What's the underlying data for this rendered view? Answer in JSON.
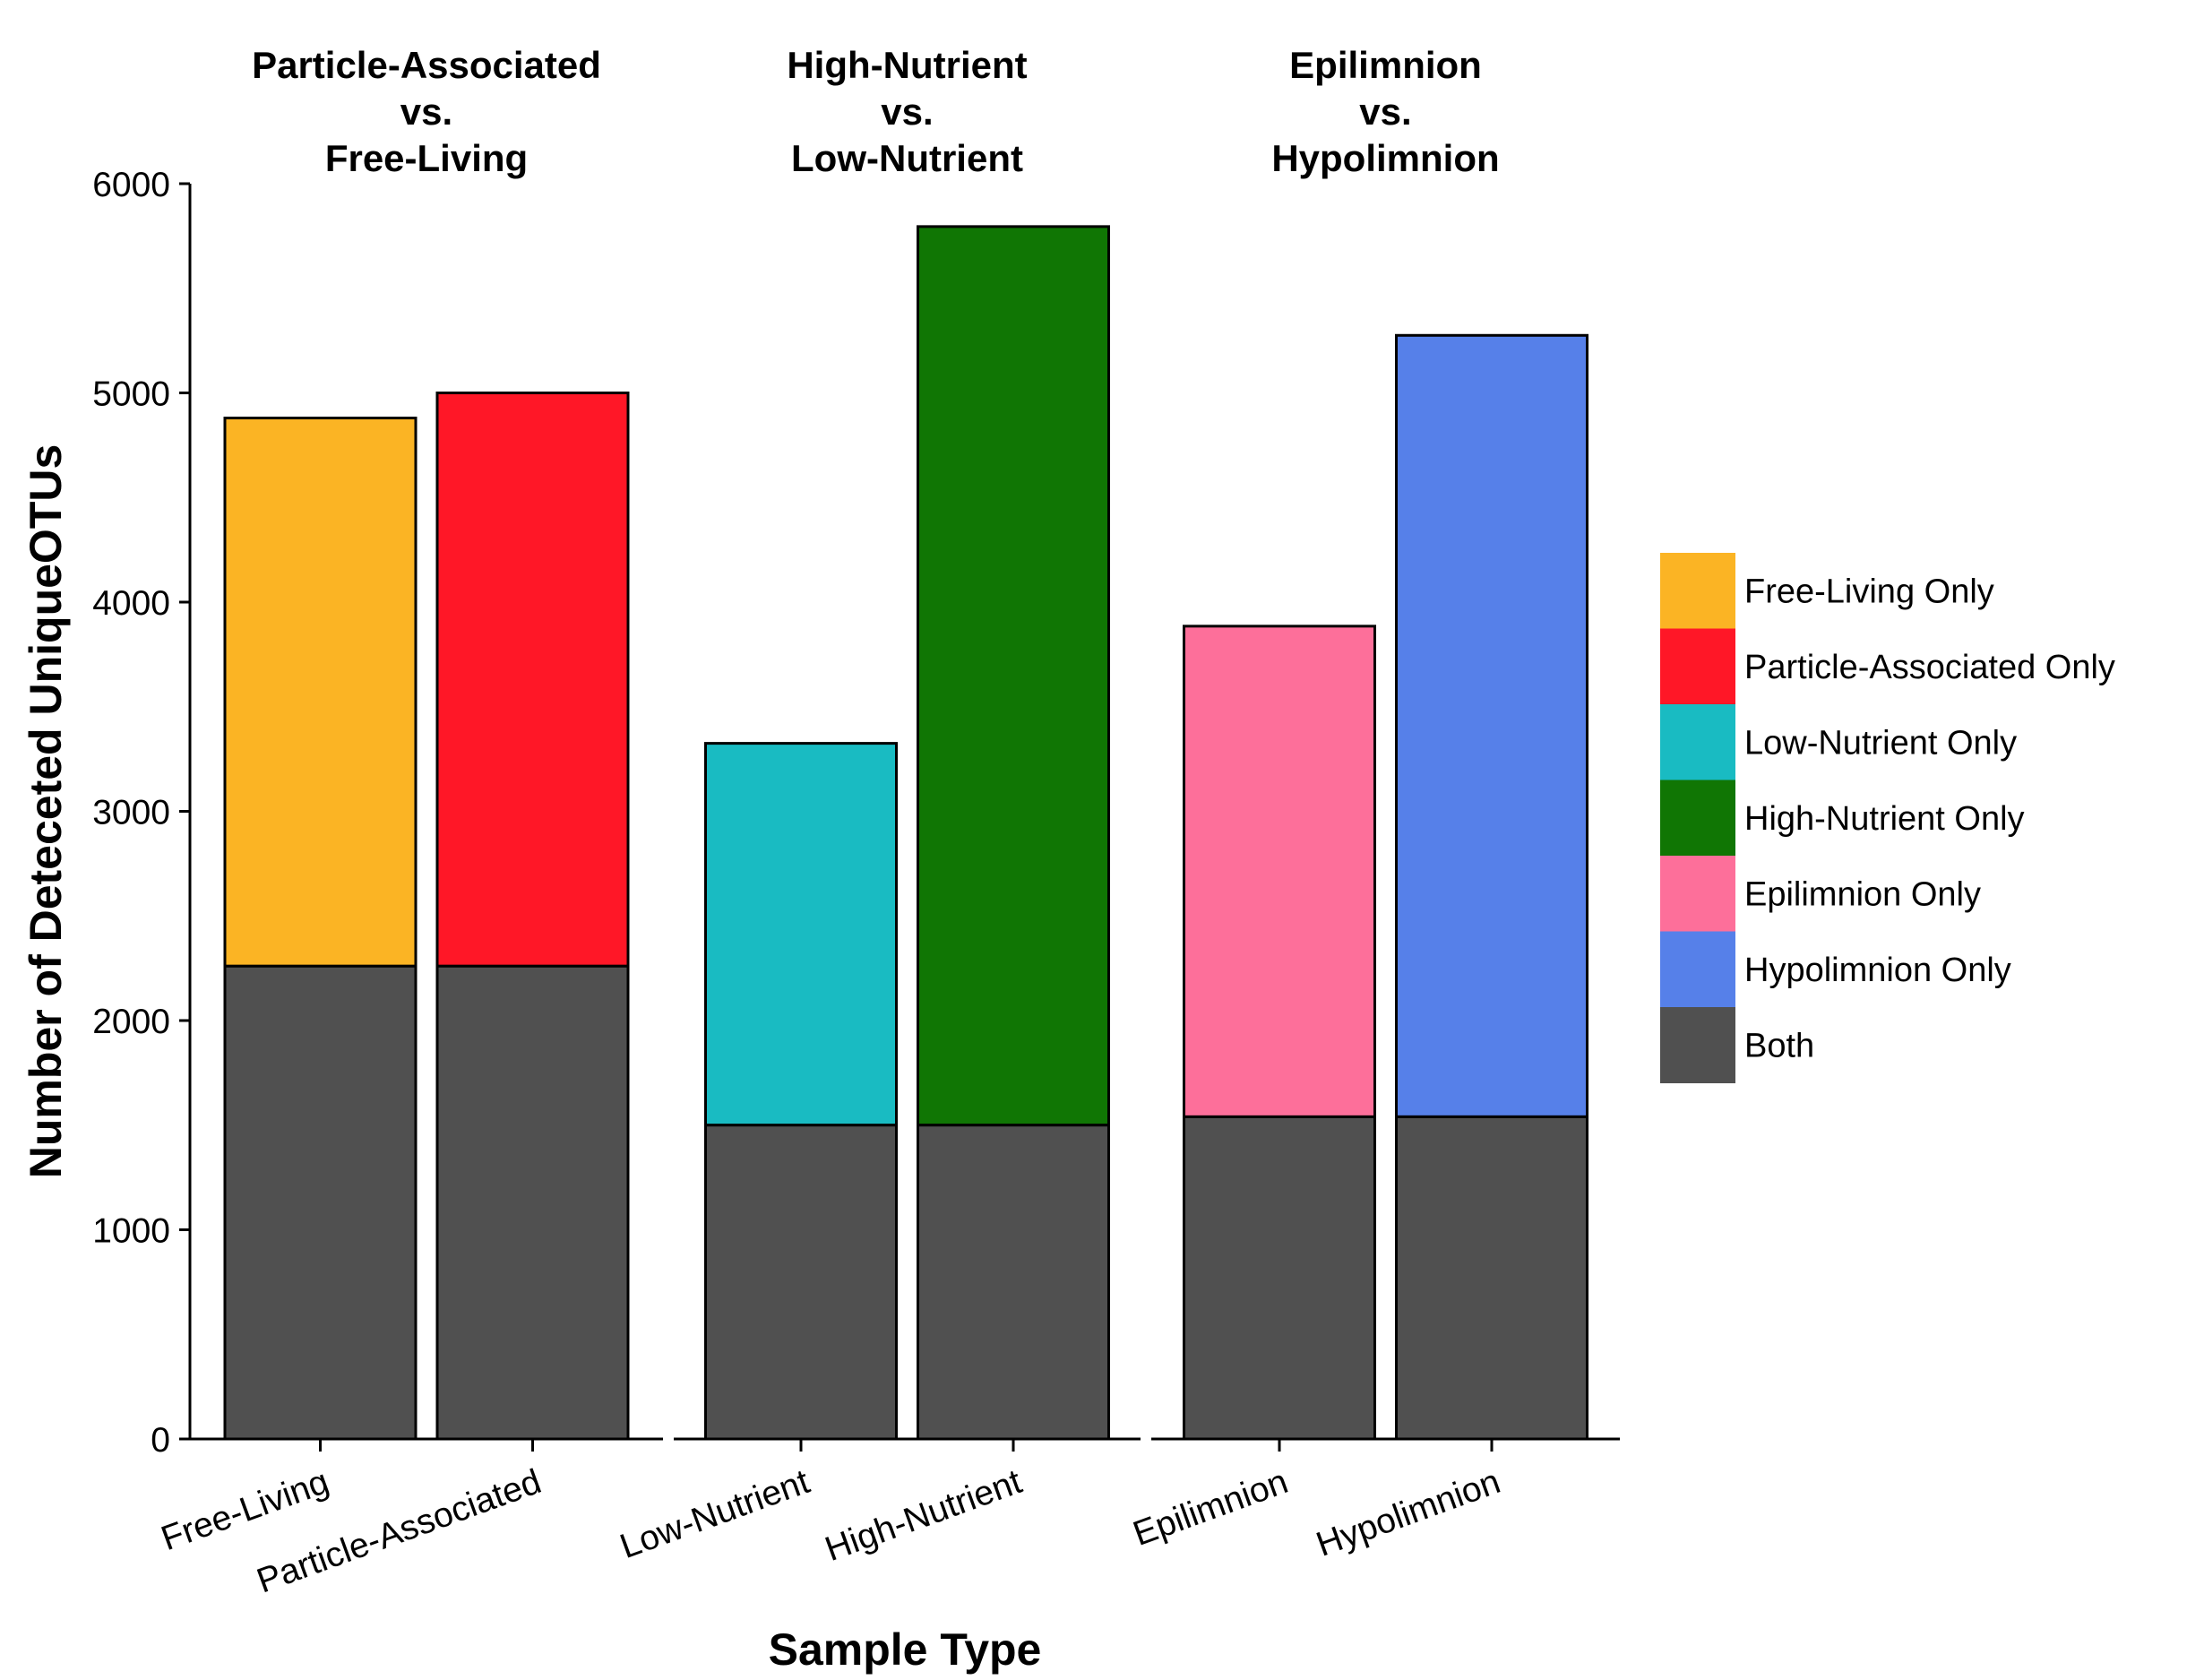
{
  "chart_data": {
    "type": "bar",
    "stacked": true,
    "title": "",
    "xlabel": "Sample Type",
    "ylabel": "Number of Deteceted UniqueOTUs",
    "ylim": [
      0,
      6000
    ],
    "yticks": [
      0,
      1000,
      2000,
      3000,
      4000,
      5000,
      6000
    ],
    "grid": false,
    "legend_position": "right",
    "facets": [
      {
        "title_lines": [
          "Particle-Associated",
          "vs.",
          "Free-Living"
        ],
        "categories": [
          "Free-Living",
          "Particle-Associated"
        ],
        "bars": [
          {
            "category": "Free-Living",
            "both": 2260,
            "only": 2620,
            "only_series": "Free-Living Only",
            "total": 4880
          },
          {
            "category": "Particle-Associated",
            "both": 2260,
            "only": 2740,
            "only_series": "Particle-Associated Only",
            "total": 5000
          }
        ]
      },
      {
        "title_lines": [
          "High-Nutrient",
          "vs.",
          "Low-Nutrient"
        ],
        "categories": [
          "Low-Nutrient",
          "High-Nutrient"
        ],
        "bars": [
          {
            "category": "Low-Nutrient",
            "both": 1500,
            "only": 1825,
            "only_series": "Low-Nutrient Only",
            "total": 3325
          },
          {
            "category": "High-Nutrient",
            "both": 1500,
            "only": 4295,
            "only_series": "High-Nutrient Only",
            "total": 5795
          }
        ]
      },
      {
        "title_lines": [
          "Epilimnion",
          "vs.",
          "Hypolimnion"
        ],
        "categories": [
          "Epilimnion",
          "Hypolimnion"
        ],
        "bars": [
          {
            "category": "Epilimnion",
            "both": 1540,
            "only": 2345,
            "only_series": "Epilimnion Only",
            "total": 3885
          },
          {
            "category": "Hypolimnion",
            "both": 1540,
            "only": 3735,
            "only_series": "Hypolimnion Only",
            "total": 5275
          }
        ]
      }
    ],
    "legend": [
      {
        "name": "Free-Living Only",
        "color": "#FBB424"
      },
      {
        "name": "Particle-Associated Only",
        "color": "#FF1727"
      },
      {
        "name": "Low-Nutrient Only",
        "color": "#19BBC2"
      },
      {
        "name": "High-Nutrient Only",
        "color": "#107604"
      },
      {
        "name": "Epilimnion Only",
        "color": "#FD6F9A"
      },
      {
        "name": "Hypolimnion Only",
        "color": "#5680E9"
      },
      {
        "name": "Both",
        "color": "#505050"
      }
    ]
  }
}
